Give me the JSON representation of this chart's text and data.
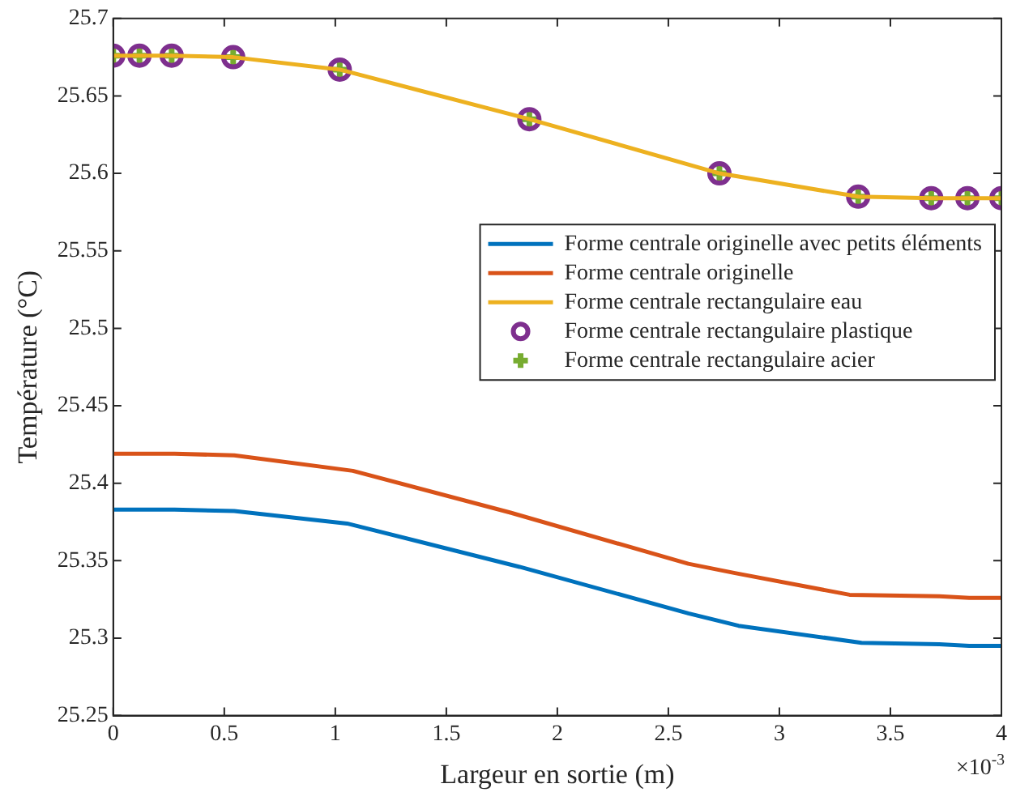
{
  "chart_data": {
    "type": "line",
    "xlabel": "Largeur en sortie (m)",
    "ylabel": "Température (°C)",
    "annotations": [
      "×10$^{-3}$"
    ],
    "xlim": [
      0,
      4
    ],
    "xticks": [
      0,
      0.5,
      1,
      1.5,
      2,
      2.5,
      3,
      3.5,
      4
    ],
    "ylim": [
      25.25,
      25.7
    ],
    "yticks": [
      25.25,
      25.3,
      25.35,
      25.4,
      25.45,
      25.5,
      25.55,
      25.6,
      25.65,
      25.7
    ],
    "grid": false,
    "legend": "right",
    "line_style": "solid",
    "series": [
      {
        "name": "Forme centrale originelle avec petits éléments",
        "color": "#0072bd",
        "marker": "none",
        "x": [
          0,
          0.276,
          0.545,
          1.053,
          1.83,
          2.59,
          2.816,
          3.37,
          3.72,
          3.855,
          4
        ],
        "values": [
          25.383,
          25.383,
          25.382,
          25.374,
          25.346,
          25.316,
          25.308,
          25.297,
          25.296,
          25.295,
          25.295
        ]
      },
      {
        "name": "Forme centrale originelle",
        "color": "#d95319",
        "marker": "none",
        "x": [
          0,
          0.276,
          0.545,
          1.079,
          1.789,
          2.59,
          2.8,
          3.316,
          3.72,
          3.855,
          4
        ],
        "values": [
          25.419,
          25.419,
          25.418,
          25.408,
          25.381,
          25.348,
          25.342,
          25.328,
          25.327,
          25.326,
          25.326
        ]
      },
      {
        "name": "Forme centrale rectangulaire eau",
        "color": "#edb120",
        "marker": "none",
        "x": [
          0,
          0.118,
          0.263,
          0.54,
          1.02,
          1.874,
          2.73,
          3.355,
          3.684,
          3.847,
          4
        ],
        "values": [
          25.676,
          25.676,
          25.676,
          25.675,
          25.667,
          25.635,
          25.6,
          25.585,
          25.584,
          25.584,
          25.584
        ]
      },
      {
        "name": "Forme centrale rectangulaire plastique",
        "color": "#7e2f8e",
        "type": "scatter",
        "marker": "circle",
        "x": [
          0,
          0.118,
          0.263,
          0.54,
          1.02,
          1.874,
          2.73,
          3.355,
          3.684,
          3.847,
          4
        ],
        "values": [
          25.676,
          25.676,
          25.676,
          25.675,
          25.667,
          25.635,
          25.6,
          25.585,
          25.584,
          25.584,
          25.584
        ]
      },
      {
        "name": "Forme centrale rectangulaire acier",
        "color": "#77ac30",
        "type": "scatter",
        "marker": "cross",
        "x": [
          0,
          0.118,
          0.263,
          0.54,
          1.02,
          1.874,
          2.73,
          3.355,
          3.684,
          3.847,
          4
        ],
        "values": [
          25.676,
          25.676,
          25.676,
          25.675,
          25.667,
          25.635,
          25.6,
          25.585,
          25.584,
          25.584,
          25.584
        ]
      }
    ]
  }
}
